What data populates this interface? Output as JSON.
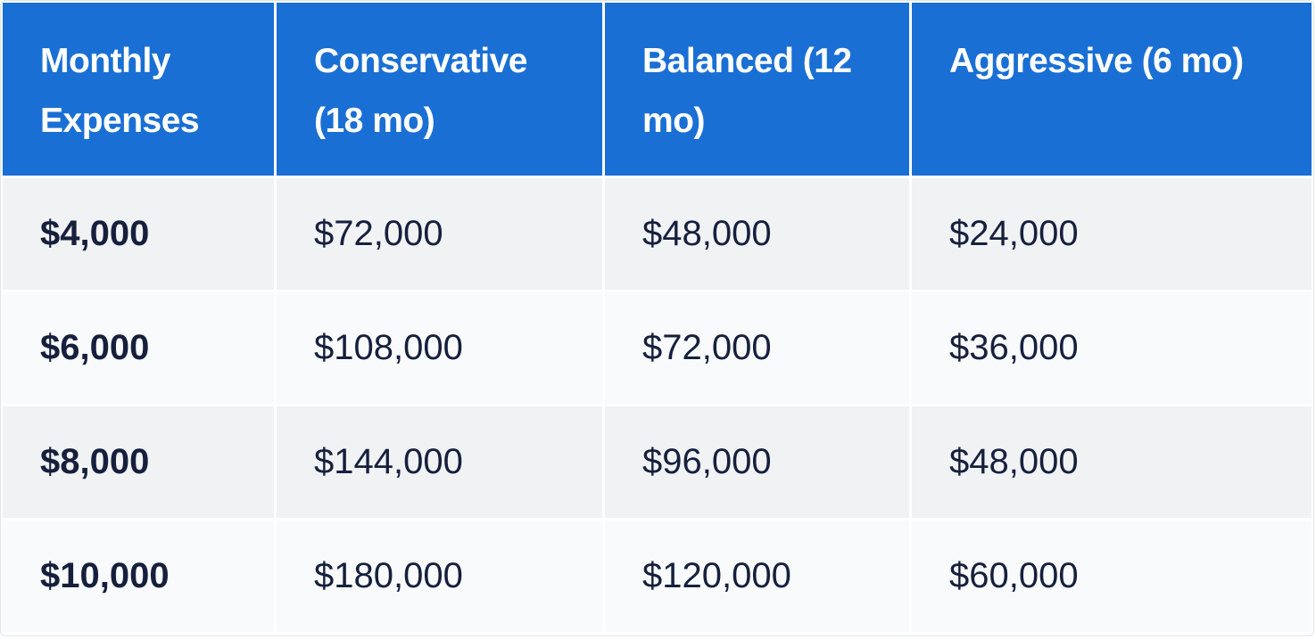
{
  "table": {
    "columns": [
      "Monthly Expenses",
      "Conservative (18 mo)",
      "Balanced (12 mo)",
      "Aggressive (6 mo)"
    ],
    "rows": [
      [
        "$4,000",
        "$72,000",
        "$48,000",
        "$24,000"
      ],
      [
        "$6,000",
        "$108,000",
        "$72,000",
        "$36,000"
      ],
      [
        "$8,000",
        "$144,000",
        "$96,000",
        "$48,000"
      ],
      [
        "$10,000",
        "$180,000",
        "$120,000",
        "$60,000"
      ]
    ]
  }
}
